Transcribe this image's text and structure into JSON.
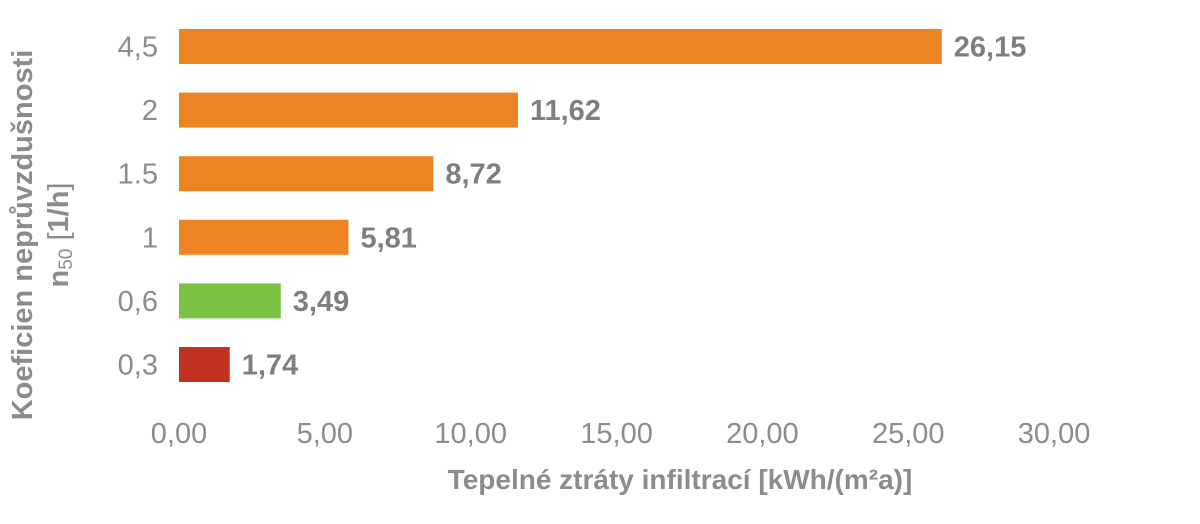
{
  "chart_data": {
    "type": "bar",
    "orientation": "horizontal",
    "categories": [
      "4,5",
      "2",
      "1.5",
      "1",
      "0,6",
      "0,3"
    ],
    "values": [
      26.15,
      11.62,
      8.72,
      5.81,
      3.49,
      1.74
    ],
    "value_labels": [
      "26,15",
      "11,62",
      "8,72",
      "5,81",
      "3,49",
      "1,74"
    ],
    "colors": [
      "#ec8424",
      "#ec8424",
      "#ec8424",
      "#ec8424",
      "#7cc242",
      "#c0311f"
    ],
    "xlim": [
      0,
      30
    ],
    "xticks": [
      0,
      5,
      10,
      15,
      20,
      25,
      30
    ],
    "xtick_labels": [
      "0,00",
      "5,00",
      "10,00",
      "15,00",
      "20,00",
      "25,00",
      "30,00"
    ],
    "xlabel": "Tepelné ztráty infiltrací [kWh/(m²a)]",
    "ylabel": {
      "line1": "Koeficien neprůvzdušnosti",
      "line2_main": "n",
      "line2_sub": "50",
      "line2_bracket_open": " [",
      "line2_unit": "1/h",
      "line2_bracket_close": "]"
    },
    "grid": false,
    "legend": "none"
  }
}
